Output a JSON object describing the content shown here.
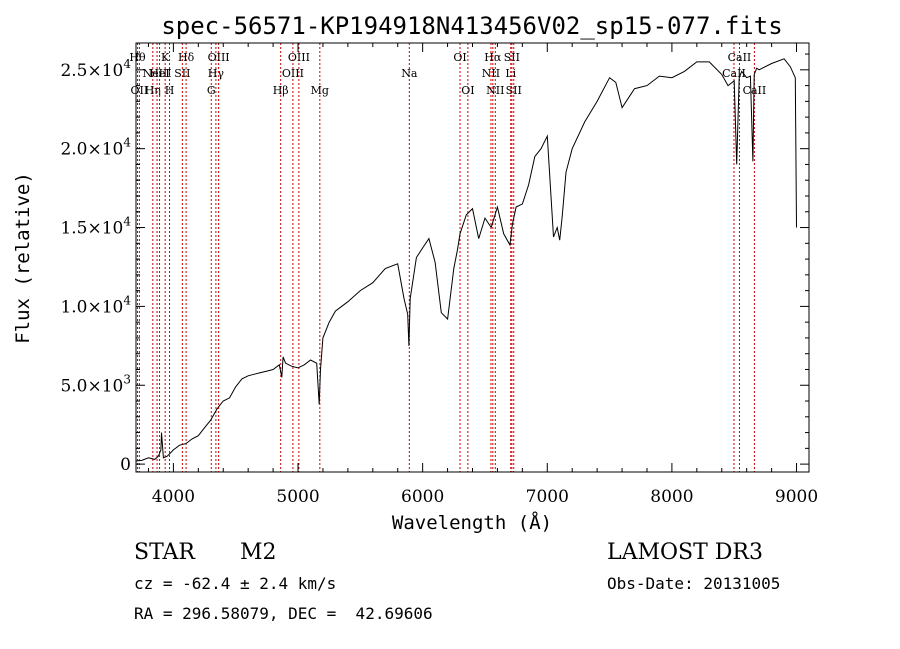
{
  "chart_data": {
    "type": "line",
    "title": "spec-56571-KP194918N413456V02_sp15-077.fits",
    "xlabel": "Wavelength (Å)",
    "ylabel": "Flux (relative)",
    "xlim": [
      3700,
      9100
    ],
    "ylim": [
      -500,
      26700
    ],
    "x_ticks": [
      {
        "value": 4000,
        "label": "4000"
      },
      {
        "value": 5000,
        "label": "5000"
      },
      {
        "value": 6000,
        "label": "6000"
      },
      {
        "value": 7000,
        "label": "7000"
      },
      {
        "value": 8000,
        "label": "8000"
      },
      {
        "value": 9000,
        "label": "9000"
      }
    ],
    "y_ticks": [
      {
        "value": 0,
        "mant": "0",
        "exp": ""
      },
      {
        "value": 5000,
        "mant": "5.0×10",
        "exp": "3"
      },
      {
        "value": 10000,
        "mant": "1.0×10",
        "exp": "4"
      },
      {
        "value": 15000,
        "mant": "1.5×10",
        "exp": "4"
      },
      {
        "value": 20000,
        "mant": "2.0×10",
        "exp": "4"
      },
      {
        "value": 25000,
        "mant": "2.5×10",
        "exp": "4"
      }
    ],
    "series": [
      {
        "name": "flux",
        "x": [
          3700,
          3750,
          3800,
          3850,
          3880,
          3900,
          3905,
          3920,
          3950,
          4000,
          4050,
          4100,
          4150,
          4200,
          4250,
          4300,
          4350,
          4400,
          4450,
          4500,
          4550,
          4600,
          4650,
          4700,
          4750,
          4800,
          4850,
          4870,
          4880,
          4900,
          4950,
          5000,
          5050,
          5100,
          5150,
          5170,
          5180,
          5200,
          5250,
          5300,
          5400,
          5500,
          5600,
          5700,
          5800,
          5850,
          5880,
          5890,
          5900,
          5950,
          6000,
          6050,
          6100,
          6150,
          6200,
          6250,
          6280,
          6300,
          6350,
          6400,
          6450,
          6500,
          6550,
          6600,
          6650,
          6700,
          6720,
          6750,
          6800,
          6850,
          6900,
          6950,
          7000,
          7050,
          7080,
          7100,
          7120,
          7150,
          7200,
          7300,
          7400,
          7500,
          7550,
          7600,
          7650,
          7700,
          7800,
          7900,
          8000,
          8100,
          8200,
          8300,
          8400,
          8450,
          8500,
          8520,
          8540,
          8560,
          8600,
          8630,
          8650,
          8660,
          8680,
          8700,
          8800,
          8900,
          8950,
          8990,
          9000
        ],
        "y": [
          200,
          250,
          400,
          300,
          500,
          900,
          2000,
          400,
          500,
          900,
          1200,
          1300,
          1600,
          1800,
          2300,
          2800,
          3500,
          4000,
          4200,
          4900,
          5400,
          5600,
          5700,
          5800,
          5900,
          6000,
          6300,
          5500,
          6800,
          6400,
          6200,
          6100,
          6300,
          6600,
          6400,
          3800,
          6000,
          8000,
          9000,
          9700,
          10300,
          11000,
          11500,
          12400,
          12700,
          10500,
          9500,
          7500,
          10500,
          13100,
          13700,
          14300,
          12800,
          9600,
          9200,
          12400,
          13600,
          14600,
          15800,
          16200,
          14300,
          15600,
          15000,
          16300,
          14600,
          13900,
          15200,
          16300,
          16500,
          17700,
          19500,
          20000,
          20800,
          14400,
          15000,
          14200,
          15700,
          18500,
          20000,
          21700,
          23000,
          24500,
          24200,
          22600,
          23200,
          23800,
          24000,
          24600,
          24500,
          24900,
          25500,
          25500,
          24700,
          24000,
          24300,
          19000,
          24500,
          24900,
          24500,
          24600,
          19200,
          24700,
          25100,
          25000,
          25400,
          25700,
          25200,
          24500,
          15000
        ]
      }
    ],
    "lines": [
      {
        "wl": 3712,
        "label": "Hθ",
        "row": 0
      },
      {
        "wl": 3727,
        "label": "OII",
        "row": 2
      },
      {
        "wl": 3835,
        "label": "Hη",
        "row": 2
      },
      {
        "wl": 3869,
        "label": "NeIII",
        "row": 1
      },
      {
        "wl": 3889,
        "label": "HeI",
        "row": 1
      },
      {
        "wl": 3934,
        "label": "K",
        "row": 0
      },
      {
        "wl": 3969,
        "label": "H",
        "row": 2
      },
      {
        "wl": 4072,
        "label": "SII",
        "row": 1
      },
      {
        "wl": 4102,
        "label": "Hδ",
        "row": 0
      },
      {
        "wl": 4304,
        "label": "G",
        "row": 2
      },
      {
        "wl": 4341,
        "label": "Hγ",
        "row": 1
      },
      {
        "wl": 4363,
        "label": "OIII",
        "row": 0
      },
      {
        "wl": 4861,
        "label": "Hβ",
        "row": 2
      },
      {
        "wl": 4959,
        "label": "OIII",
        "row": 1
      },
      {
        "wl": 5007,
        "label": "OIII",
        "row": 0
      },
      {
        "wl": 5175,
        "label": "Mg",
        "row": 2
      },
      {
        "wl": 5893,
        "label": "Na",
        "row": 1
      },
      {
        "wl": 6300,
        "label": "OI",
        "row": 0
      },
      {
        "wl": 6363,
        "label": "OI",
        "row": 2
      },
      {
        "wl": 6548,
        "label": "NII",
        "row": 1
      },
      {
        "wl": 6563,
        "label": "Hα",
        "row": 0
      },
      {
        "wl": 6583,
        "label": "NII",
        "row": 2
      },
      {
        "wl": 6707,
        "label": "Li",
        "row": 1
      },
      {
        "wl": 6716,
        "label": "SII",
        "row": 0
      },
      {
        "wl": 6731,
        "label": "SII",
        "row": 2
      },
      {
        "wl": 8498,
        "label": "CaII",
        "row": 1
      },
      {
        "wl": 8542,
        "label": "CaII",
        "row": 0
      },
      {
        "wl": 8662,
        "label": "CaII",
        "row": 2
      }
    ]
  },
  "info": {
    "class_label": "STAR",
    "subclass": "M2",
    "cz": "cz = -62.4 ± 2.4 km/s",
    "coords": "RA = 296.58079, DEC =  42.69606",
    "survey": "LAMOST DR3",
    "obs_date": "Obs-Date: 20131005"
  }
}
